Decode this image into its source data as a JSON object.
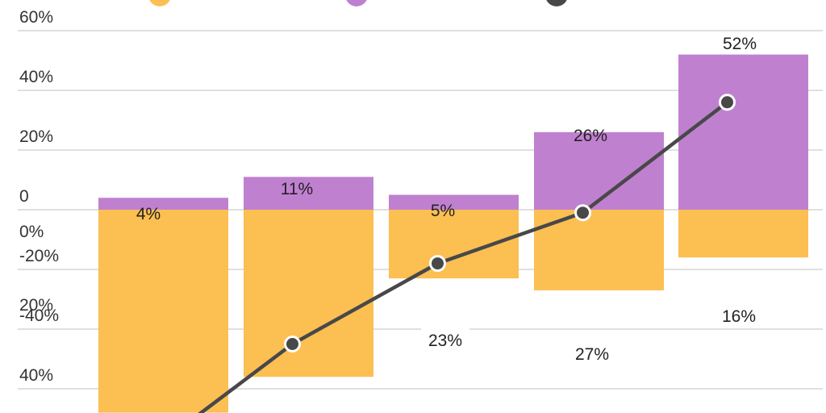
{
  "chart_data": {
    "type": "bar",
    "categories": [
      "",
      "",
      "",
      "",
      ""
    ],
    "series": [
      {
        "values": [
          -68,
          -56,
          -23,
          -27,
          -16
        ],
        "labels": [
          "",
          "",
          "23%",
          "27%",
          "16%"
        ],
        "color": "#FCBF52"
      },
      {
        "values": [
          4,
          11,
          5,
          26,
          52
        ],
        "labels": [
          "4%",
          "11%",
          "5%",
          "26%",
          "52%"
        ],
        "color": "#C080D0"
      },
      {
        "type": "line",
        "values": [
          -68,
          -45,
          -18,
          -1,
          36
        ],
        "color": "#484848"
      }
    ],
    "ylim": [
      -60,
      60
    ],
    "yticks": [
      60,
      40,
      20,
      0,
      -20,
      -40
    ],
    "ytick_labels": [
      "60%",
      "40%",
      "20%",
      "0",
      "-20%",
      "-40%"
    ],
    "secondary_ytick_labels": [
      "0%",
      "20%",
      "40%"
    ],
    "legend_position": "top",
    "grid": true,
    "stacked": true
  }
}
